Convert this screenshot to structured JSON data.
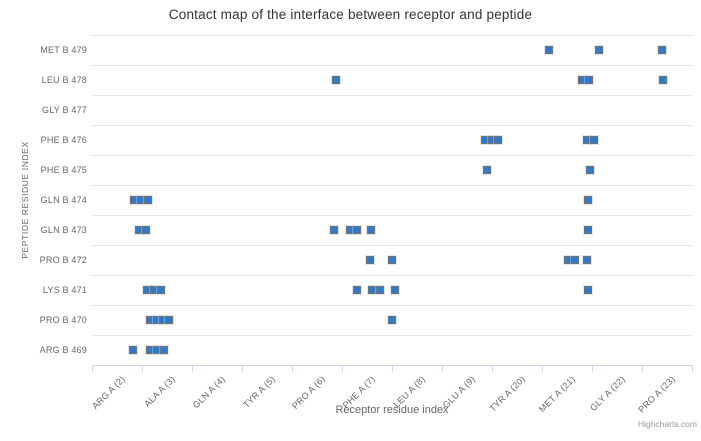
{
  "title": "Contact map of the interface between receptor and peptide",
  "credit": "Highcharts.com",
  "xaxis": {
    "title": "Receptor residue index",
    "categories": [
      "ARG A (2)",
      "ALA A (3)",
      "GLN A (4)",
      "TYR A (5)",
      "PRO A (6)",
      "PHE A (7)",
      "LEU A (8)",
      "GLU A (9)",
      "TYR A (20)",
      "MET A (21)",
      "GLY A (22)",
      "PRO A (23)"
    ]
  },
  "yaxis": {
    "title": "PEPTIDE RESIDUE INDEX",
    "categories": [
      "MET B 479",
      "LEU B 478",
      "GLY B 477",
      "PHE B 476",
      "PHE B 475",
      "GLN B 474",
      "GLN B 473",
      "PRO B 472",
      "LYS B 471",
      "PRO B 470",
      "ARG B 469"
    ]
  },
  "colors": {
    "point_fill": "#2f7bc9",
    "point_border": "#6f7479",
    "grid_line": "#e6e6e6",
    "axis_line": "#ccd6eb",
    "label_text": "#666666",
    "title_text": "#333333",
    "credit_text": "#999999"
  },
  "chart_data": {
    "type": "scatter",
    "title": "Contact map of the interface between receptor and peptide",
    "xlabel": "Receptor residue index",
    "ylabel": "PEPTIDE RESIDUE INDEX",
    "marker": "square",
    "legend": "none",
    "grid": "horizontal-only",
    "x_categories": [
      "ARG A (2)",
      "ALA A (3)",
      "GLN A (4)",
      "TYR A (5)",
      "PRO A (6)",
      "PHE A (7)",
      "LEU A (8)",
      "GLU A (9)",
      "TYR A (20)",
      "MET A (21)",
      "GLY A (22)",
      "PRO A (23)"
    ],
    "y_categories": [
      "MET B 479",
      "LEU B 478",
      "GLY B 477",
      "PHE B 476",
      "PHE B 475",
      "GLN B 474",
      "GLN B 473",
      "PRO B 472",
      "LYS B 471",
      "PRO B 470",
      "ARG B 469"
    ],
    "points_unit": "x = receptor category index with jitter (0 = ARG A (2) ... 11 = PRO A (23)); y = peptide category index (0 = MET B 479 top ... 10 = ARG B 469 bottom)",
    "points": [
      [
        8.64,
        0
      ],
      [
        9.64,
        0
      ],
      [
        10.9,
        0
      ],
      [
        4.38,
        1
      ],
      [
        9.3,
        1
      ],
      [
        9.44,
        1
      ],
      [
        10.92,
        1
      ],
      [
        7.36,
        3
      ],
      [
        7.5,
        3
      ],
      [
        7.62,
        3
      ],
      [
        9.4,
        3
      ],
      [
        9.54,
        3
      ],
      [
        7.4,
        4
      ],
      [
        9.46,
        4
      ],
      [
        0.34,
        5
      ],
      [
        0.48,
        5
      ],
      [
        0.62,
        5
      ],
      [
        9.42,
        5
      ],
      [
        0.44,
        6
      ],
      [
        0.58,
        6
      ],
      [
        4.34,
        6
      ],
      [
        4.66,
        6
      ],
      [
        4.8,
        6
      ],
      [
        5.08,
        6
      ],
      [
        9.42,
        6
      ],
      [
        5.06,
        7
      ],
      [
        5.5,
        7
      ],
      [
        9.02,
        7
      ],
      [
        9.16,
        7
      ],
      [
        9.4,
        7
      ],
      [
        0.6,
        8
      ],
      [
        0.74,
        8
      ],
      [
        0.88,
        8
      ],
      [
        4.8,
        8
      ],
      [
        5.1,
        8
      ],
      [
        5.26,
        8
      ],
      [
        5.56,
        8
      ],
      [
        9.42,
        8
      ],
      [
        0.66,
        9
      ],
      [
        0.8,
        9
      ],
      [
        0.92,
        9
      ],
      [
        1.04,
        9
      ],
      [
        5.5,
        9
      ],
      [
        0.32,
        10
      ],
      [
        0.66,
        10
      ],
      [
        0.8,
        10
      ],
      [
        0.94,
        10
      ]
    ]
  }
}
